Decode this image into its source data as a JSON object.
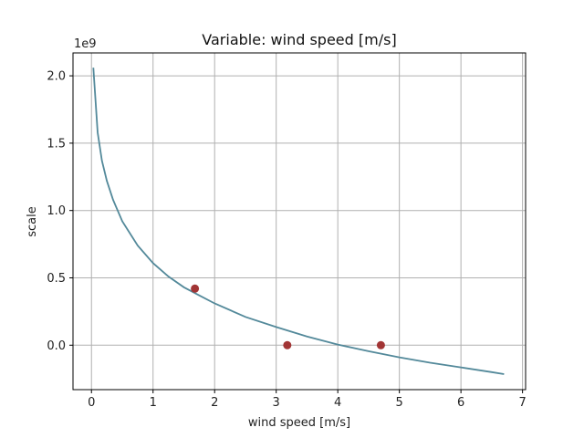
{
  "chart_data": {
    "type": "line",
    "title": "Variable: wind speed [m/s]",
    "xlabel": "wind speed [m/s]",
    "ylabel": "scale",
    "y_offset_label": "1e9",
    "xlim": [
      -0.3,
      7.05
    ],
    "ylim": [
      -0.33,
      2.17
    ],
    "x_ticks": [
      0,
      1,
      2,
      3,
      4,
      5,
      6,
      7
    ],
    "x_tick_labels": [
      "0",
      "1",
      "2",
      "3",
      "4",
      "5",
      "6",
      "7"
    ],
    "y_ticks": [
      0.0,
      0.5,
      1.0,
      1.5,
      2.0
    ],
    "y_tick_labels": [
      "0.0",
      "0.5",
      "1.0",
      "1.5",
      "2.0"
    ],
    "grid": true,
    "series": [
      {
        "kind": "line",
        "color": "#53899a",
        "x": [
          0.03,
          0.1,
          0.17,
          0.25,
          0.35,
          0.5,
          0.75,
          1.0,
          1.25,
          1.5,
          1.75,
          2.0,
          2.5,
          3.0,
          3.5,
          4.0,
          4.5,
          5.0,
          5.5,
          6.0,
          6.5,
          6.7
        ],
        "y": [
          2.06,
          1.58,
          1.37,
          1.22,
          1.08,
          0.92,
          0.74,
          0.61,
          0.51,
          0.43,
          0.37,
          0.31,
          0.21,
          0.135,
          0.065,
          0.005,
          -0.045,
          -0.09,
          -0.13,
          -0.165,
          -0.2,
          -0.215
        ]
      },
      {
        "kind": "scatter",
        "color": "#a23535",
        "x": [
          1.68,
          3.18,
          4.7
        ],
        "y": [
          0.42,
          0.0,
          0.0
        ]
      }
    ]
  }
}
